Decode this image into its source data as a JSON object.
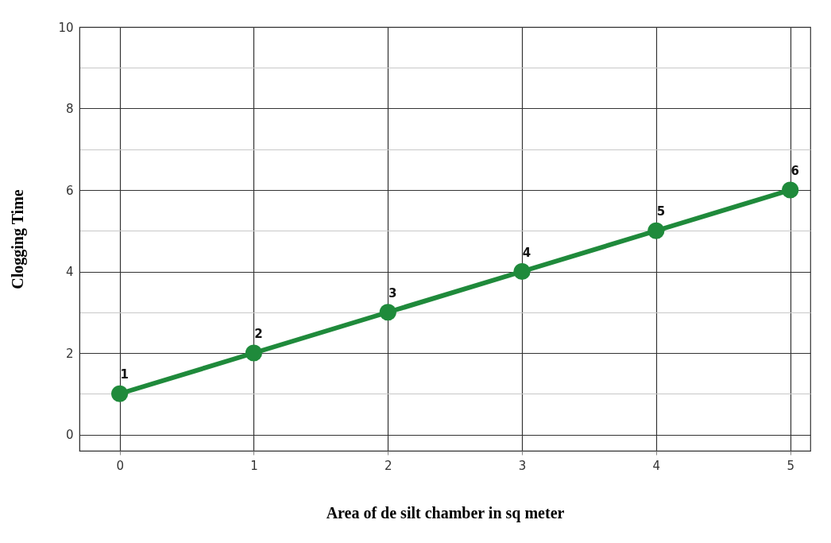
{
  "chart_data": {
    "type": "line",
    "xlabel": "Area of de silt chamber in sq meter",
    "ylabel": "Clogging Time",
    "x": [
      0,
      1,
      2,
      3,
      4,
      5
    ],
    "series": [
      {
        "color": "#1f8a3b",
        "values": [
          1,
          2,
          3,
          4,
          5,
          6
        ]
      }
    ],
    "xlim": [
      -0.3,
      5.15
    ],
    "xticks": [
      0,
      1,
      2,
      3,
      4,
      5
    ],
    "ylim": [
      -0.4,
      10
    ],
    "yticks": [
      0,
      {
        "value": 1,
        "label": null
      },
      2,
      {
        "value": 3,
        "label": null
      },
      4,
      {
        "value": 5,
        "label": null
      },
      6,
      {
        "value": 7,
        "label": null
      },
      8,
      {
        "value": 9,
        "label": null
      },
      10
    ],
    "grid": true,
    "marker": "circle",
    "line_style": "solid",
    "data_labels": true
  }
}
